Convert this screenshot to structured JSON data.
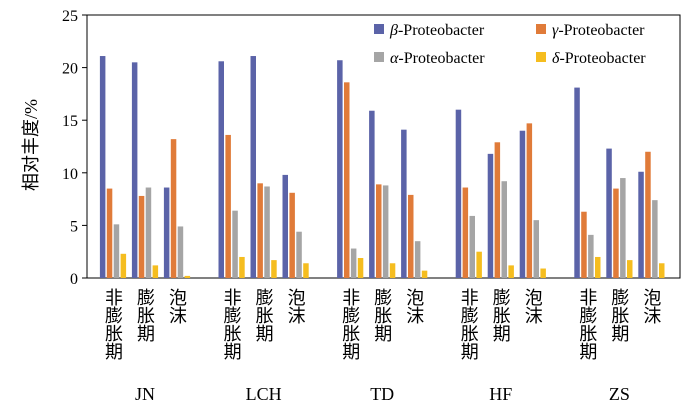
{
  "chart_data": {
    "type": "bar",
    "ylabel": "相对丰度/%",
    "ylim": [
      0,
      25
    ],
    "yticks": [
      0,
      5,
      10,
      15,
      20,
      25
    ],
    "legend_position": "top-right",
    "groups": [
      {
        "name": "JN",
        "categories": [
          "非膨胀期",
          "膨胀期",
          "泡沫"
        ]
      },
      {
        "name": "LCH",
        "categories": [
          "非膨胀期",
          "膨胀期",
          "泡沫"
        ]
      },
      {
        "name": "TD",
        "categories": [
          "非膨胀期",
          "膨胀期",
          "泡沫"
        ]
      },
      {
        "name": "HF",
        "categories": [
          "非膨胀期",
          "膨胀期",
          "泡沫"
        ]
      },
      {
        "name": "ZS",
        "categories": [
          "非膨胀期",
          "膨胀期",
          "泡沫"
        ]
      }
    ],
    "series": [
      {
        "name": "β-Proteobacter",
        "greek": "β",
        "suffix": "-Proteobacter",
        "color": "#5b63a8",
        "values": [
          21.1,
          20.5,
          8.6,
          20.6,
          21.1,
          9.8,
          20.7,
          15.9,
          14.1,
          16.0,
          11.8,
          14.0,
          18.1,
          12.3,
          10.1
        ]
      },
      {
        "name": "γ-Proteobacter",
        "greek": "γ",
        "suffix": "-Proteobacter",
        "color": "#e07b39",
        "values": [
          8.5,
          7.8,
          13.2,
          13.6,
          9.0,
          8.1,
          18.6,
          8.9,
          7.9,
          8.6,
          12.9,
          14.7,
          6.3,
          8.5,
          12.0
        ]
      },
      {
        "name": "α-Proteobacter",
        "greek": "α",
        "suffix": "-Proteobacter",
        "color": "#a5a5a5",
        "values": [
          5.1,
          8.6,
          4.9,
          6.4,
          8.7,
          4.4,
          2.8,
          8.8,
          3.5,
          5.9,
          9.2,
          5.5,
          4.1,
          9.5,
          7.4
        ]
      },
      {
        "name": "δ-Proteobacter",
        "greek": "δ",
        "suffix": "-Proteobacter",
        "color": "#f5bd1f",
        "values": [
          2.3,
          1.2,
          0.2,
          2.0,
          1.7,
          1.4,
          1.9,
          1.4,
          0.7,
          2.5,
          1.2,
          0.9,
          2.0,
          1.7,
          1.4
        ]
      }
    ]
  }
}
